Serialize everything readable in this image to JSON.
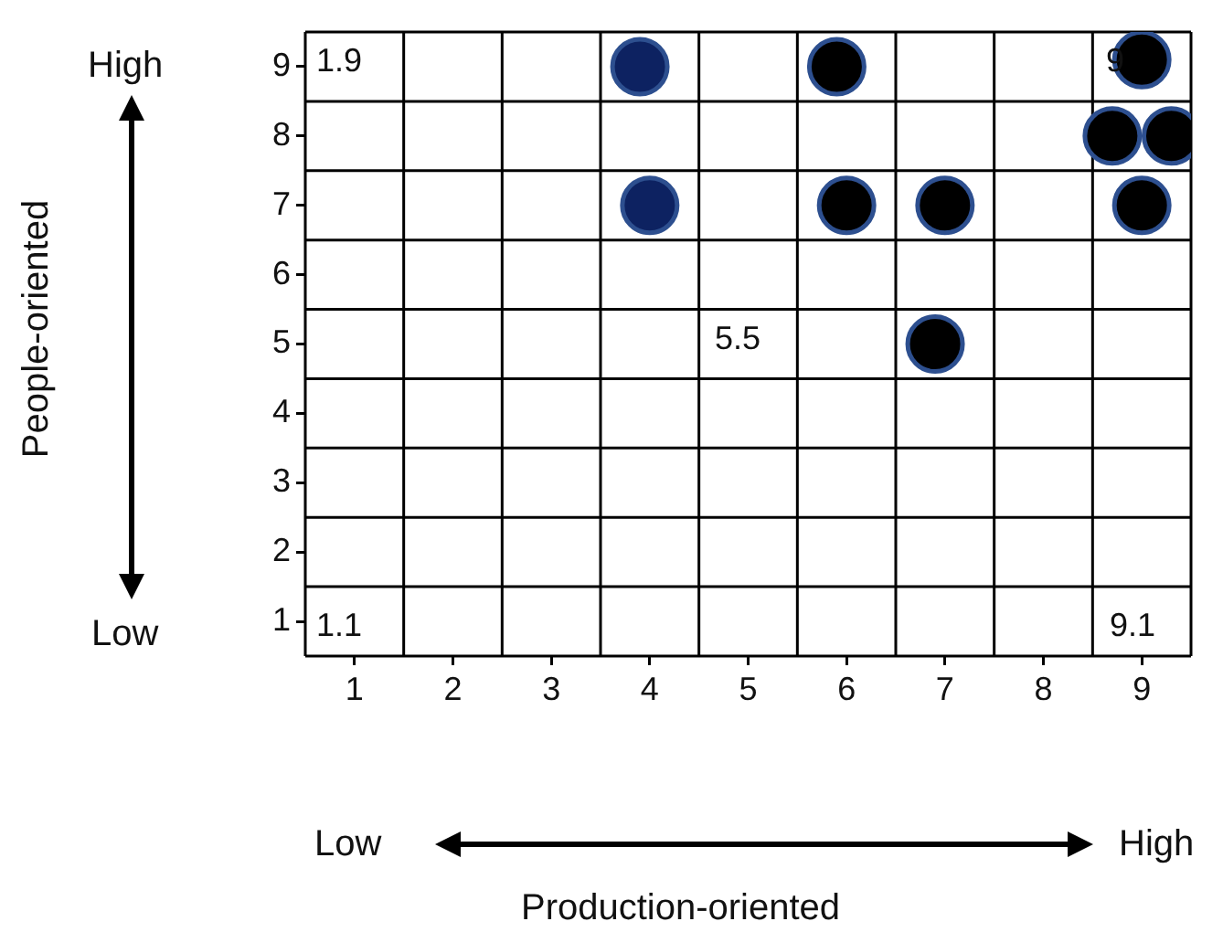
{
  "chart_data": {
    "type": "scatter",
    "xlabel": "Production-oriented",
    "xlim": [
      0.5,
      9.5
    ],
    "ylim": [
      0.5,
      9.5
    ],
    "xticks": [
      1,
      2,
      3,
      4,
      5,
      6,
      7,
      8,
      9
    ],
    "yticks": [
      1,
      2,
      3,
      4,
      5,
      6,
      7,
      8,
      9
    ],
    "grid": true,
    "legend": false,
    "marker": "circle",
    "series": [
      {
        "color": "#0d2261",
        "x": [
          3.9,
          4.0
        ],
        "values": [
          9.0,
          7.0
        ]
      },
      {
        "color": "#000000",
        "x": [
          5.9,
          6.0,
          7.0,
          6.9,
          9.0,
          8.7,
          9.3,
          9.0
        ],
        "values": [
          9.0,
          7.0,
          7.0,
          5.0,
          9.1,
          8.0,
          8.0,
          7.0
        ]
      }
    ],
    "annotations": [
      "1.9",
      "9",
      "5.5",
      "1.1",
      "9.1",
      "High",
      "Low",
      "Low",
      "High",
      "People-oriented"
    ]
  }
}
